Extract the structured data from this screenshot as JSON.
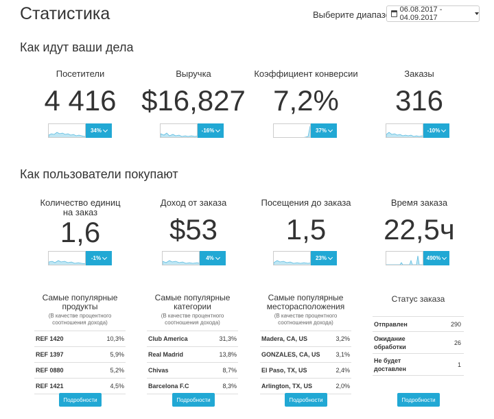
{
  "page_title": "Статистика",
  "date_range": {
    "label": "Выберите диапазон:",
    "value": "06.08.2017 - 04.09.2017"
  },
  "section_performance": "Как идут ваши дела",
  "section_buying": "Как пользователи покупают",
  "performance": [
    {
      "label": "Посетители",
      "value": "4 416",
      "change": "34%"
    },
    {
      "label": "Выручка",
      "value": "$16,827",
      "change": "-16%"
    },
    {
      "label": "Коэффициент конверсии",
      "value": "7,2%",
      "change": "37%"
    },
    {
      "label": "Заказы",
      "value": "316",
      "change": "-10%"
    }
  ],
  "buying": [
    {
      "label": "Количество единиц на заказ",
      "value": "1,6",
      "change": "-1%"
    },
    {
      "label": "Доход от заказа",
      "value": "$53",
      "change": "4%"
    },
    {
      "label": "Посещения до заказа",
      "value": "1,5",
      "change": "23%"
    },
    {
      "label": "Время заказа",
      "value": "22,5ч",
      "change": "490%"
    }
  ],
  "popular_products": {
    "title": "Самые популярные продукты",
    "subtitle": "(В качестве процентного соотношения дохода)",
    "rows": [
      {
        "name": "REF 1420",
        "pct": "10,3%"
      },
      {
        "name": "REF 1397",
        "pct": "5,9%"
      },
      {
        "name": "REF 0880",
        "pct": "5,2%"
      },
      {
        "name": "REF 1421",
        "pct": "4,5%"
      }
    ],
    "button": "Подробности"
  },
  "popular_categories": {
    "title": "Самые популярные категории",
    "subtitle": "(В качестве процентного соотношения дохода)",
    "rows": [
      {
        "name": "Club America",
        "pct": "31,3%"
      },
      {
        "name": "Real Madrid",
        "pct": "13,8%"
      },
      {
        "name": "Chivas",
        "pct": "8,7%"
      },
      {
        "name": "Barcelona F.C",
        "pct": "8,3%"
      }
    ],
    "button": "Подробности"
  },
  "popular_locations": {
    "title": "Самые популярные месторасположения",
    "subtitle": "(В качестве процентного соотношения дохода)",
    "rows": [
      {
        "name": "Madera, CA, US",
        "pct": "3,2%"
      },
      {
        "name": "GONZALES, CA, US",
        "pct": "3,1%"
      },
      {
        "name": "El Paso, TX, US",
        "pct": "2,4%"
      },
      {
        "name": "Arlington, TX, US",
        "pct": "2,0%"
      }
    ],
    "button": "Подробности"
  },
  "order_status": {
    "title": "Статус заказа",
    "rows": [
      {
        "name": "Отправлен",
        "count": "290"
      },
      {
        "name": "Ожидание обработки",
        "count": "26"
      },
      {
        "name": "Не будет доставлен",
        "count": "1"
      }
    ],
    "button": "Подробности"
  },
  "colors": {
    "accent": "#21a8d4",
    "spark_fill": "#bfe6f3",
    "spark_line": "#5bbbe0"
  }
}
